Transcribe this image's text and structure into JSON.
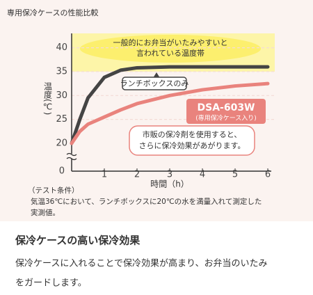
{
  "chart_data": {
    "type": "line",
    "title": "専用保冷ケースの性能比較",
    "x_label": "時間（h）",
    "y_label": "温度(℃)",
    "x": [
      0,
      0.25,
      0.5,
      1,
      1.5,
      2,
      3,
      4,
      5,
      6
    ],
    "series": [
      {
        "name": "ランチボックスのみ",
        "color": "#444444",
        "values": [
          20,
          25,
          29.5,
          33.8,
          35.3,
          35.8,
          36,
          36,
          36,
          36
        ]
      },
      {
        "name": "DSA-603W",
        "note": "(専用保冷ケース入り)",
        "color": "#e9837d",
        "values": [
          20,
          22.5,
          24,
          25.5,
          27,
          28.3,
          30,
          31.2,
          32,
          32.5
        ]
      }
    ],
    "xlim": [
      0,
      6
    ],
    "xticks": [
      1,
      2,
      3,
      4,
      5,
      6
    ],
    "ylim": [
      0,
      43
    ],
    "yticks": [
      0,
      20,
      25,
      30,
      35,
      40
    ],
    "y_break": [
      0,
      20
    ],
    "grid": true,
    "band": {
      "from": 35,
      "to": 43,
      "color": "#fdf5a8",
      "label": [
        "一般的にお弁当がいたみやすいと",
        "言われている温度帯"
      ]
    },
    "callout": [
      "市販の保冷剤を使用すると、",
      "さらに保冷効果があがります。"
    ],
    "conditions": [
      "（テスト条件）",
      "気温36℃において、ランチボックスに20℃の水を満量入れて測定した",
      "実測値。"
    ]
  },
  "section": {
    "heading": "保冷ケースの高い保冷効果",
    "body": [
      "保冷ケースに入れることで保冷効果が高まり、お弁当のいたみ",
      "をガードします。"
    ]
  }
}
